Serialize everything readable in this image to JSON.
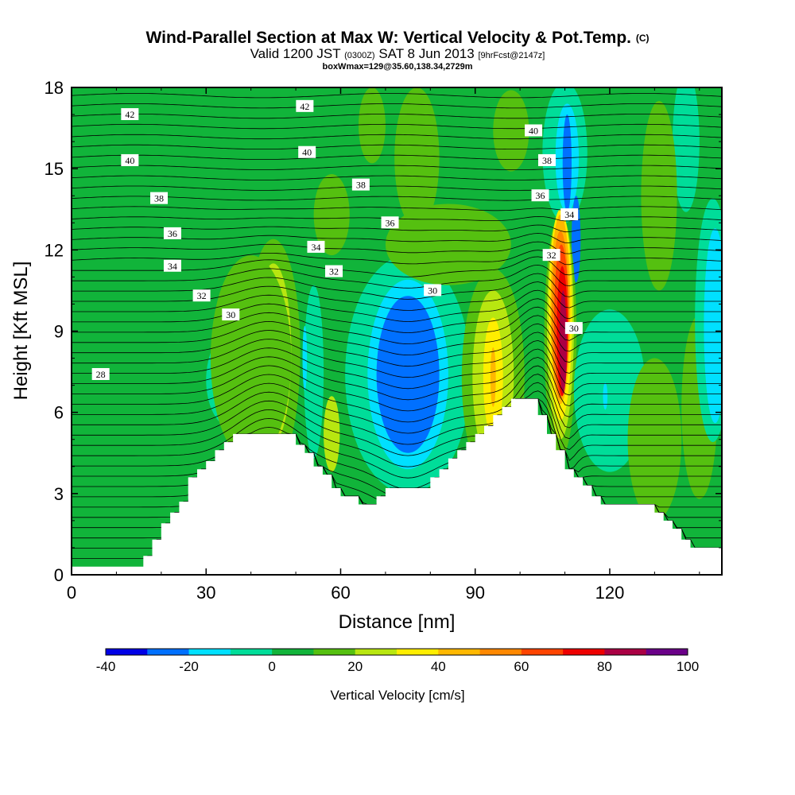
{
  "header": {
    "title": "Wind-Parallel Section at Max W: Vertical Velocity & Pot.Temp.",
    "title_mark": "(C)",
    "valid_prefix": "Valid 1200 JST",
    "valid_zulu": "(0300Z)",
    "valid_date": "SAT 8 Jun 2013",
    "valid_forecast": "[9hrFcst@2147z]",
    "box_info": "boxWmax=129@35.60,138.34,2729m"
  },
  "chart_data": {
    "type": "heatmap",
    "xlabel": "Distance [nm]",
    "ylabel": "Height [Kft MSL]",
    "xlim": [
      0,
      145
    ],
    "ylim": [
      0,
      18
    ],
    "x_ticks": [
      0,
      30,
      60,
      90,
      120
    ],
    "y_ticks": [
      0,
      3,
      6,
      9,
      12,
      15,
      18
    ],
    "terrain": {
      "x": [
        0,
        16,
        16,
        18,
        18,
        20,
        20,
        22,
        22,
        24,
        24,
        26,
        26,
        28,
        28,
        30,
        30,
        32,
        32,
        34,
        34,
        36,
        36,
        38,
        38,
        40,
        40,
        42,
        42,
        50,
        50,
        52,
        52,
        54,
        54,
        56,
        56,
        58,
        58,
        60,
        60,
        62,
        62,
        64,
        64,
        66,
        66,
        68,
        68,
        70,
        70,
        72,
        72,
        76,
        76,
        80,
        80,
        82,
        82,
        84,
        84,
        86,
        86,
        88,
        88,
        90,
        90,
        92,
        92,
        94,
        94,
        96,
        96,
        98,
        98,
        100,
        100,
        104,
        104,
        106,
        106,
        108,
        108,
        110,
        110,
        112,
        112,
        114,
        114,
        116,
        116,
        118,
        118,
        120,
        120,
        130,
        130,
        132,
        132,
        134,
        134,
        136,
        136,
        138,
        138,
        140,
        140,
        142,
        142,
        145
      ],
      "y": [
        0.3,
        0.3,
        0.7,
        0.7,
        1.3,
        1.3,
        1.9,
        1.9,
        2.3,
        2.3,
        2.7,
        2.7,
        3.6,
        3.6,
        3.9,
        3.9,
        4.2,
        4.2,
        4.6,
        4.6,
        4.9,
        4.9,
        5.2,
        5.2,
        5.2,
        5.2,
        5.2,
        5.2,
        5.2,
        5.2,
        4.8,
        4.8,
        4.5,
        4.5,
        4.0,
        4.0,
        3.7,
        3.7,
        3.2,
        3.2,
        2.9,
        2.9,
        2.9,
        2.9,
        2.6,
        2.6,
        2.6,
        2.6,
        2.9,
        2.9,
        3.2,
        3.2,
        3.2,
        3.2,
        3.2,
        3.2,
        3.6,
        3.6,
        3.9,
        3.9,
        4.3,
        4.3,
        4.6,
        4.6,
        4.9,
        4.9,
        5.2,
        5.2,
        5.5,
        5.5,
        5.9,
        5.9,
        6.2,
        6.2,
        6.5,
        6.5,
        6.5,
        6.5,
        5.9,
        5.9,
        5.2,
        5.2,
        4.6,
        4.6,
        3.9,
        3.9,
        3.6,
        3.6,
        3.3,
        3.3,
        2.9,
        2.9,
        2.6,
        2.6,
        2.6,
        2.6,
        2.3,
        2.3,
        2.0,
        2.0,
        1.7,
        1.7,
        1.3,
        1.3,
        1.0,
        1.0,
        1.0,
        1.0,
        1.0,
        1.0
      ]
    },
    "vertical_velocity_cells": [
      {
        "cx": 45,
        "cy": 8.2,
        "rx": 6,
        "ry": 4.2,
        "value": 10
      },
      {
        "cx": 45,
        "cy": 8.2,
        "rx": 4,
        "ry": 3.3,
        "value": 20
      },
      {
        "cx": 45,
        "cy": 8.2,
        "rx": 2.6,
        "ry": 2.5,
        "value": 30
      },
      {
        "cx": 45,
        "cy": 8.2,
        "rx": 0.4,
        "ry": 0.8,
        "value": 40
      },
      {
        "cx": 36,
        "cy": 7.2,
        "rx": 6,
        "ry": 1.8,
        "value": -10
      },
      {
        "cx": 54,
        "cy": 7.5,
        "rx": 2.2,
        "ry": 3.2,
        "value": -10
      },
      {
        "cx": 52,
        "cy": 8.0,
        "rx": 0.5,
        "ry": 1.2,
        "value": -20
      },
      {
        "cx": 58,
        "cy": 5.2,
        "rx": 1.8,
        "ry": 1.4,
        "value": 20
      },
      {
        "cx": 75,
        "cy": 7.4,
        "rx": 14,
        "ry": 4.4,
        "value": -10
      },
      {
        "cx": 75,
        "cy": 7.4,
        "rx": 9,
        "ry": 3.5,
        "value": -20
      },
      {
        "cx": 75,
        "cy": 7.4,
        "rx": 7,
        "ry": 2.9,
        "value": -30
      },
      {
        "cx": 94,
        "cy": 7.3,
        "rx": 7,
        "ry": 4.0,
        "value": 10
      },
      {
        "cx": 94,
        "cy": 7.3,
        "rx": 4.6,
        "ry": 3.2,
        "value": 20
      },
      {
        "cx": 94,
        "cy": 7.3,
        "rx": 2.2,
        "ry": 2.2,
        "value": 30
      },
      {
        "cx": 94,
        "cy": 7.3,
        "rx": 0.6,
        "ry": 1.1,
        "value": 40
      },
      {
        "cx": 110,
        "cy": 15.6,
        "rx": 5,
        "ry": 2.6,
        "value": -10
      },
      {
        "cx": 110.5,
        "cy": 15.4,
        "rx": 2.6,
        "ry": 2.0,
        "value": -20
      },
      {
        "cx": 110.5,
        "cy": 15.2,
        "rx": 1.0,
        "ry": 1.8,
        "value": -30
      },
      {
        "cx": 112.5,
        "cy": 12.4,
        "rx": 1.0,
        "ry": 1.6,
        "value": -30
      },
      {
        "cx": 109,
        "cy": 8.8,
        "rx": 3.6,
        "ry": 4.5,
        "value": 10
      },
      {
        "cx": 109,
        "cy": 9.2,
        "rx": 3.0,
        "ry": 4.2,
        "value": 20
      },
      {
        "cx": 109,
        "cy": 9.6,
        "rx": 2.6,
        "ry": 3.9,
        "value": 30
      },
      {
        "cx": 109,
        "cy": 9.8,
        "rx": 2.2,
        "ry": 3.5,
        "value": 40
      },
      {
        "cx": 109,
        "cy": 9.6,
        "rx": 1.9,
        "ry": 3.1,
        "value": 50
      },
      {
        "cx": 109.2,
        "cy": 9.4,
        "rx": 1.6,
        "ry": 2.8,
        "value": 60
      },
      {
        "cx": 109.4,
        "cy": 9.0,
        "rx": 1.2,
        "ry": 2.4,
        "value": 70
      },
      {
        "cx": 109.6,
        "cy": 8.6,
        "rx": 0.8,
        "ry": 1.9,
        "value": 80
      },
      {
        "cx": 120,
        "cy": 6.8,
        "rx": 8,
        "ry": 3.0,
        "value": -10
      },
      {
        "cx": 119,
        "cy": 6.6,
        "rx": 0.5,
        "ry": 0.5,
        "value": -20
      },
      {
        "cx": 130,
        "cy": 5.0,
        "rx": 6,
        "ry": 3.0,
        "value": 10
      },
      {
        "cx": 140,
        "cy": 6.2,
        "rx": 4.0,
        "ry": 3.4,
        "value": 10
      },
      {
        "cx": 143,
        "cy": 9.4,
        "rx": 4,
        "ry": 4.5,
        "value": -10
      },
      {
        "cx": 143.5,
        "cy": 9.2,
        "rx": 2.5,
        "ry": 3.6,
        "value": -20
      },
      {
        "cx": 137,
        "cy": 16.0,
        "rx": 3,
        "ry": 2.6,
        "value": -10
      },
      {
        "cx": 131,
        "cy": 14.0,
        "rx": 4,
        "ry": 3.5,
        "value": 10
      },
      {
        "cx": 67,
        "cy": 16.6,
        "rx": 3,
        "ry": 1.4,
        "value": 10
      },
      {
        "cx": 77,
        "cy": 15.4,
        "rx": 5,
        "ry": 2.6,
        "value": 10
      },
      {
        "cx": 98,
        "cy": 16.4,
        "rx": 4,
        "ry": 1.5,
        "value": 10
      },
      {
        "cx": 58,
        "cy": 13.3,
        "rx": 4,
        "ry": 1.5,
        "value": 10
      },
      {
        "cx": 84,
        "cy": 12.2,
        "rx": 14,
        "ry": 1.5,
        "value": 10
      },
      {
        "cx": 40,
        "cy": 8.0,
        "rx": 9,
        "ry": 3.8,
        "value": 10
      }
    ],
    "potential_temperature": {
      "levels": [
        28,
        30,
        32,
        34,
        36,
        38,
        40,
        42
      ],
      "labels": [
        {
          "text": "42",
          "x": 13,
          "y": 17.0
        },
        {
          "text": "42",
          "x": 52,
          "y": 17.3
        },
        {
          "text": "40",
          "x": 13,
          "y": 15.3
        },
        {
          "text": "40",
          "x": 52.5,
          "y": 15.6
        },
        {
          "text": "40",
          "x": 103,
          "y": 16.4
        },
        {
          "text": "38",
          "x": 19.5,
          "y": 13.9
        },
        {
          "text": "38",
          "x": 64.5,
          "y": 14.4
        },
        {
          "text": "38",
          "x": 106,
          "y": 15.3
        },
        {
          "text": "36",
          "x": 22.5,
          "y": 12.6
        },
        {
          "text": "36",
          "x": 71,
          "y": 13.0
        },
        {
          "text": "36",
          "x": 104.5,
          "y": 14.0
        },
        {
          "text": "34",
          "x": 22.5,
          "y": 11.4
        },
        {
          "text": "34",
          "x": 54.5,
          "y": 12.1
        },
        {
          "text": "34",
          "x": 111,
          "y": 13.3
        },
        {
          "text": "32",
          "x": 29,
          "y": 10.3
        },
        {
          "text": "32",
          "x": 58.5,
          "y": 11.2
        },
        {
          "text": "32",
          "x": 107,
          "y": 11.8
        },
        {
          "text": "30",
          "x": 35.5,
          "y": 9.6
        },
        {
          "text": "30",
          "x": 80.5,
          "y": 10.5
        },
        {
          "text": "30",
          "x": 112,
          "y": 9.1
        },
        {
          "text": "28",
          "x": 6.5,
          "y": 7.4
        }
      ]
    },
    "colorbar": {
      "label": "Vertical Velocity [cm/s]",
      "min": -40,
      "max": 100,
      "step": 10,
      "tick_labels": [
        "-40",
        "-20",
        "0",
        "20",
        "40",
        "60",
        "80",
        "100"
      ],
      "bin_colors": [
        "#0000e6",
        "#0070ff",
        "#00e0ff",
        "#00dd99",
        "#11b43a",
        "#55c010",
        "#b8e610",
        "#ffee00",
        "#ffb800",
        "#ff8800",
        "#ff4400",
        "#ee0000",
        "#aa0044",
        "#6a0088"
      ]
    }
  }
}
